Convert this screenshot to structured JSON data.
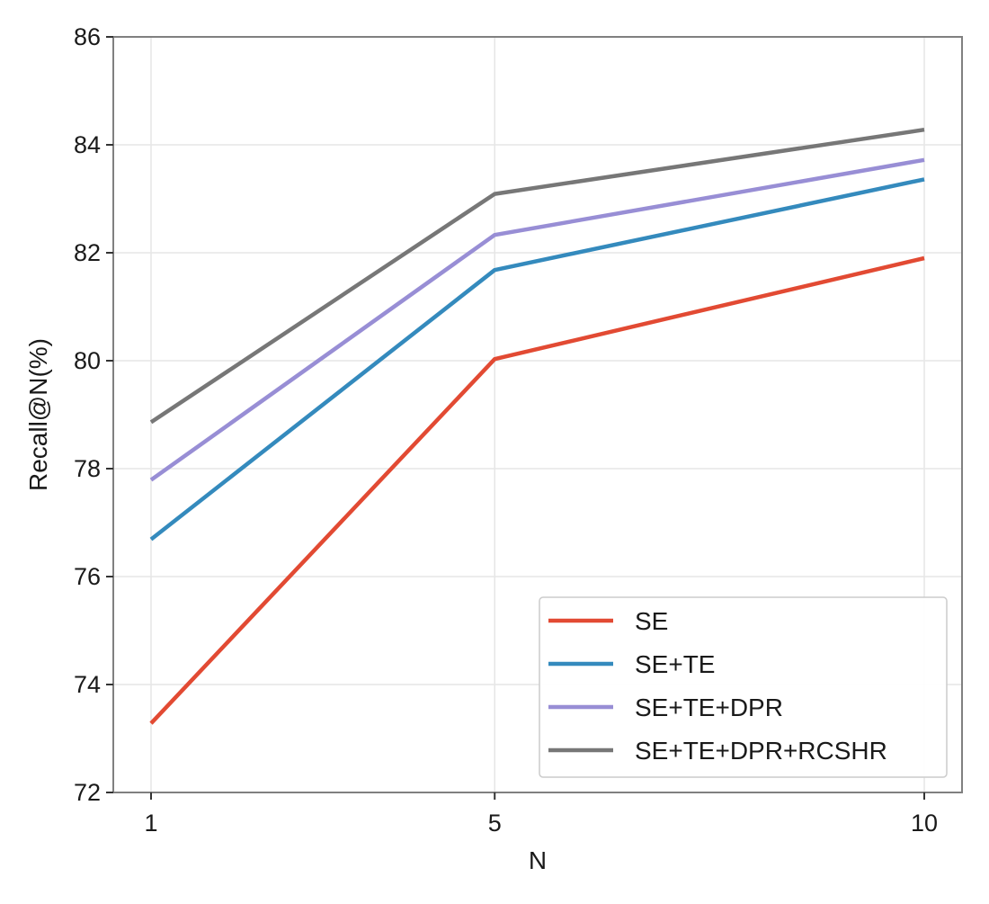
{
  "chart_data": {
    "type": "line",
    "title": "",
    "xlabel": "N",
    "ylabel": "Recall@N(%)",
    "x": [
      1,
      5,
      10
    ],
    "xticks": [
      1,
      5,
      10
    ],
    "xtick_labels": [
      "1",
      "5",
      "10"
    ],
    "ylim": [
      72,
      86
    ],
    "yticks": [
      72,
      74,
      76,
      78,
      80,
      82,
      84,
      86
    ],
    "ytick_labels": [
      "72",
      "74",
      "76",
      "78",
      "80",
      "82",
      "84",
      "86"
    ],
    "grid": true,
    "legend_position": "bottom-right",
    "series": [
      {
        "name": "SE",
        "color": "#e24a33",
        "values": [
          73.28,
          80.03,
          81.9
        ]
      },
      {
        "name": "SE+TE",
        "color": "#348abd",
        "values": [
          76.69,
          81.68,
          83.36
        ]
      },
      {
        "name": "SE+TE+DPR",
        "color": "#988ed5",
        "values": [
          77.79,
          82.33,
          83.72
        ]
      },
      {
        "name": "SE+TE+DPR+RCSHR",
        "color": "#777777",
        "values": [
          78.86,
          83.09,
          84.28
        ]
      }
    ]
  }
}
